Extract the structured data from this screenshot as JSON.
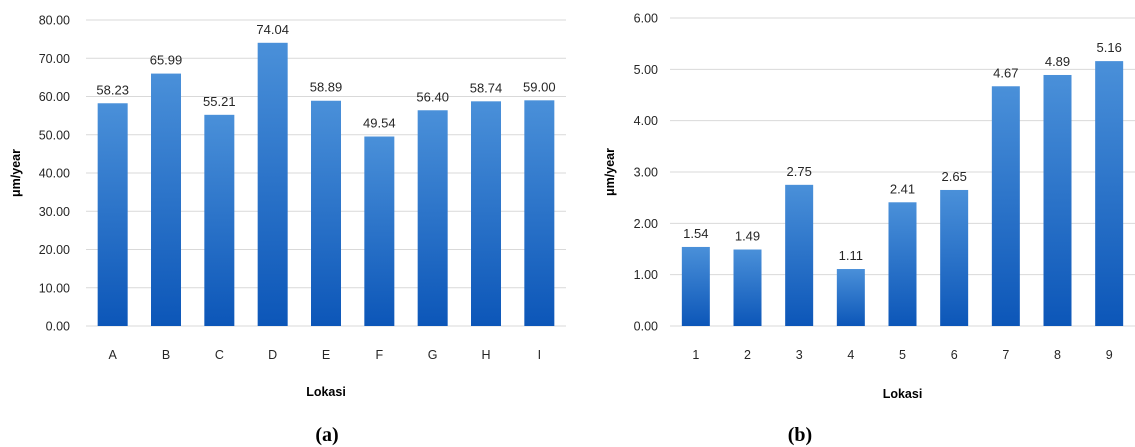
{
  "chart_data": [
    {
      "type": "bar",
      "caption": "(a)",
      "categories": [
        "A",
        "B",
        "C",
        "D",
        "E",
        "F",
        "G",
        "H",
        "I"
      ],
      "values": [
        58.23,
        65.99,
        55.21,
        74.04,
        58.89,
        49.54,
        56.4,
        58.74,
        59.0
      ],
      "value_labels": [
        "58.23",
        "65.99",
        "55.21",
        "74.04",
        "58.89",
        "49.54",
        "56.40",
        "58.74",
        "59.00"
      ],
      "xlabel": "Lokasi",
      "ylabel": "μm/year",
      "ylim": [
        0,
        80
      ],
      "yticks": [
        "0.00",
        "10.00",
        "20.00",
        "30.00",
        "40.00",
        "50.00",
        "60.00",
        "70.00",
        "80.00"
      ],
      "grid": true,
      "bar_color_top": "#4a90d9",
      "bar_color_bottom": "#0c56b8"
    },
    {
      "type": "bar",
      "caption": "(b)",
      "categories": [
        "1",
        "2",
        "3",
        "4",
        "5",
        "6",
        "7",
        "8",
        "9"
      ],
      "values": [
        1.54,
        1.49,
        2.75,
        1.11,
        2.41,
        2.65,
        4.67,
        4.89,
        5.16
      ],
      "value_labels": [
        "1.54",
        "1.49",
        "2.75",
        "1.11",
        "2.41",
        "2.65",
        "4.67",
        "4.89",
        "5.16"
      ],
      "xlabel": "Lokasi",
      "ylabel": "μm/year",
      "ylim": [
        0,
        6
      ],
      "yticks": [
        "0.00",
        "1.00",
        "2.00",
        "3.00",
        "4.00",
        "5.00",
        "6.00"
      ],
      "grid": true,
      "bar_color_top": "#4a90d9",
      "bar_color_bottom": "#0c56b8"
    }
  ]
}
